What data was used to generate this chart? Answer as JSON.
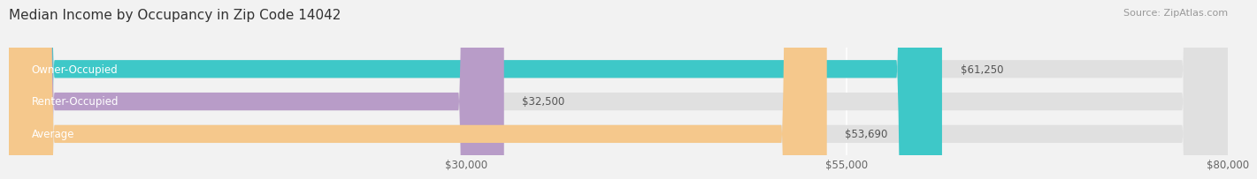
{
  "title": "Median Income by Occupancy in Zip Code 14042",
  "source": "Source: ZipAtlas.com",
  "categories": [
    "Owner-Occupied",
    "Renter-Occupied",
    "Average"
  ],
  "values": [
    61250,
    32500,
    53690
  ],
  "bar_colors": [
    "#3ec8c8",
    "#b89cc8",
    "#f5c88c"
  ],
  "value_labels": [
    "$61,250",
    "$32,500",
    "$53,690"
  ],
  "xlim": [
    0,
    80000
  ],
  "xticks": [
    30000,
    55000,
    80000
  ],
  "xtick_labels": [
    "$30,000",
    "$55,000",
    "$80,000"
  ],
  "bar_height": 0.55,
  "background_color": "#f2f2f2",
  "bar_bg_color": "#e0e0e0",
  "title_fontsize": 11,
  "label_fontsize": 8.5,
  "tick_fontsize": 8.5,
  "source_fontsize": 8
}
